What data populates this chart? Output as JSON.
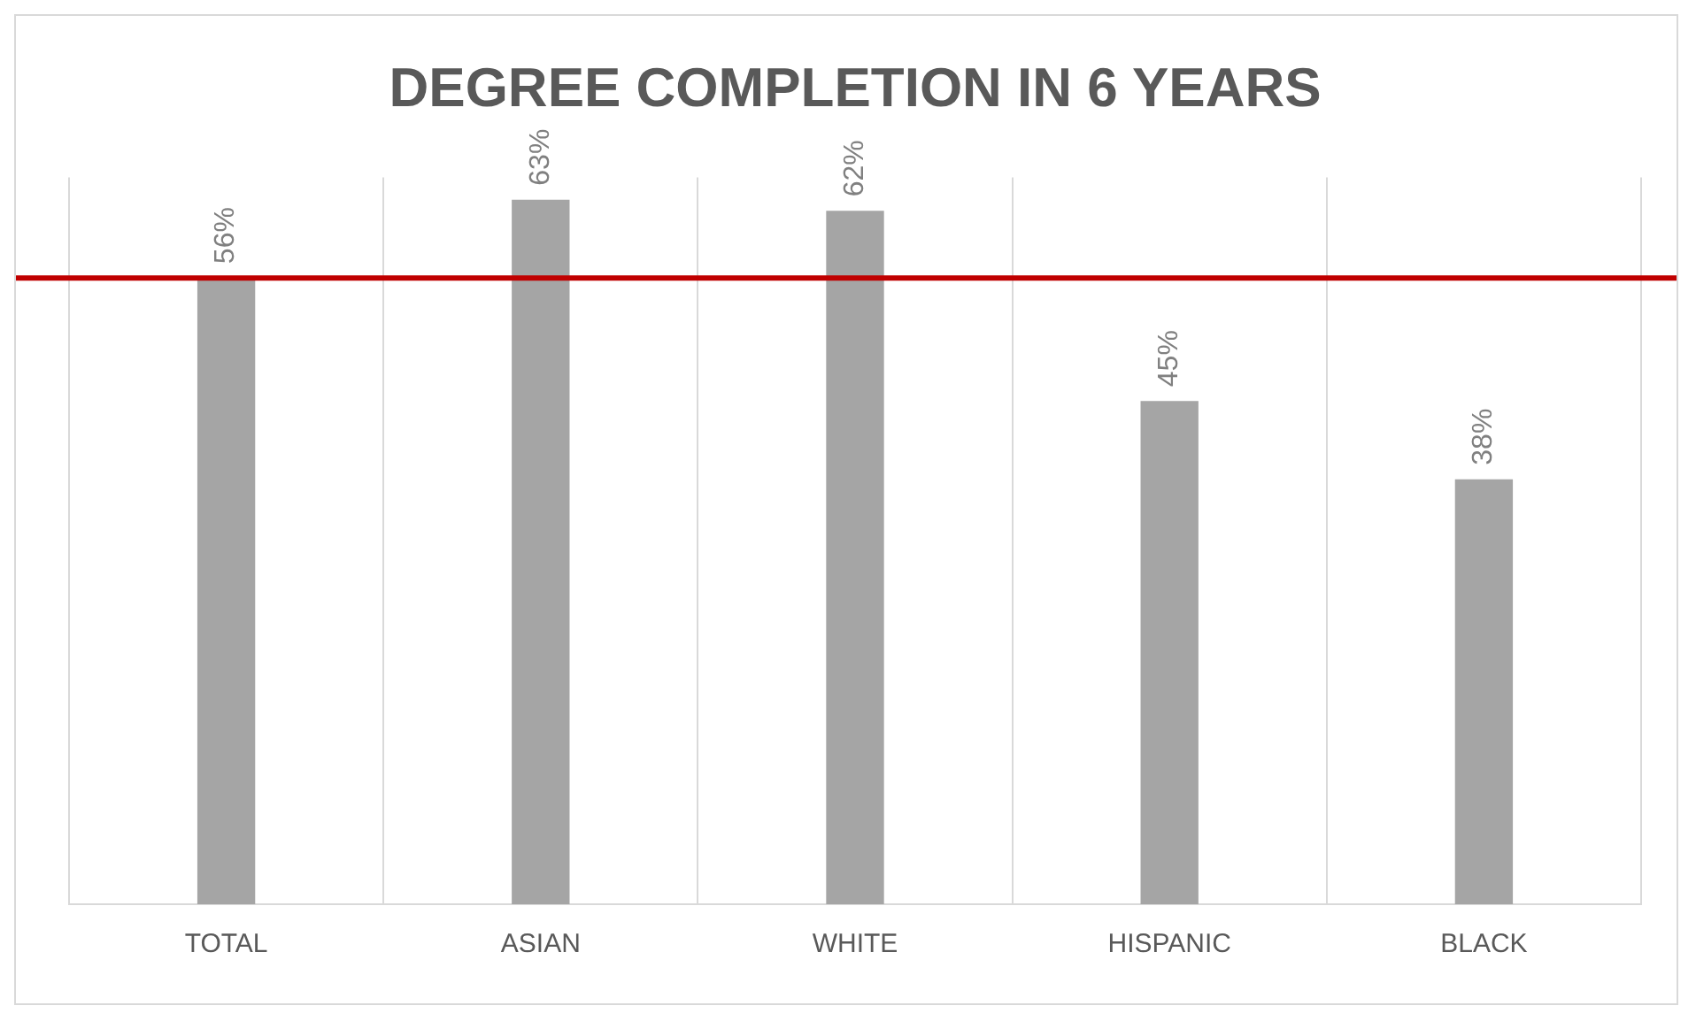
{
  "chart_data": {
    "type": "bar",
    "title": "DEGREE COMPLETION IN 6 YEARS",
    "categories": [
      "TOTAL",
      "ASIAN",
      "WHITE",
      "HISPANIC",
      "BLACK"
    ],
    "values": [
      56,
      63,
      62,
      45,
      38
    ],
    "value_labels": [
      "56%",
      "63%",
      "62%",
      "45%",
      "38%"
    ],
    "color": "#a5a5a5",
    "ylim": [
      0,
      65
    ],
    "tick_labels": "x",
    "grid": "x",
    "ref_lines": [
      {
        "axis": "y",
        "value": 56,
        "color": "#c00000"
      }
    ]
  }
}
